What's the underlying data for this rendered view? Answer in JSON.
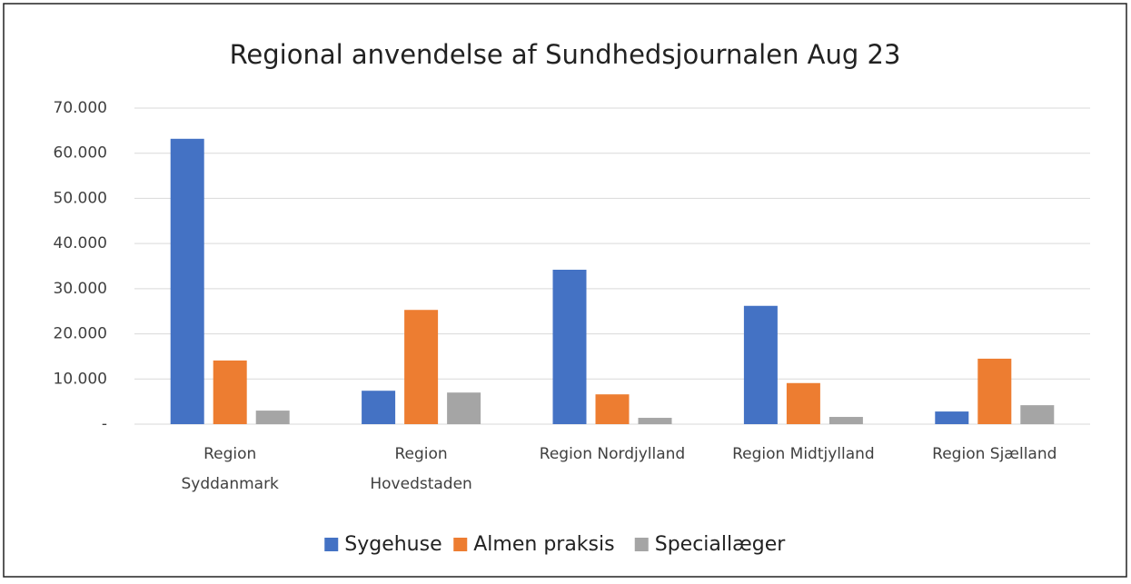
{
  "chart_data": {
    "type": "bar",
    "title": "Regional anvendelse af Sundhedsjournalen  Aug 23",
    "categories": [
      "Region\nSyddanmark",
      "Region\nHovedstaden",
      "Region Nordjylland",
      "Region Midtjylland",
      "Region Sjælland"
    ],
    "series": [
      {
        "name": "Sygehuse",
        "color": "#4472c4",
        "values": [
          63200,
          7400,
          34200,
          26200,
          2800
        ]
      },
      {
        "name": "Almen praksis",
        "color": "#ed7d31",
        "values": [
          14100,
          25300,
          6600,
          9100,
          14500
        ]
      },
      {
        "name": "Speciallæger",
        "color": "#a5a5a5",
        "values": [
          3000,
          7000,
          1400,
          1600,
          4200
        ]
      }
    ],
    "ylim": [
      0,
      70000
    ],
    "yticks": [
      {
        "value": 0,
        "label": "-"
      },
      {
        "value": 10000,
        "label": "10.000"
      },
      {
        "value": 20000,
        "label": "20.000"
      },
      {
        "value": 30000,
        "label": "30.000"
      },
      {
        "value": 40000,
        "label": "40.000"
      },
      {
        "value": 50000,
        "label": "50.000"
      },
      {
        "value": 60000,
        "label": "60.000"
      },
      {
        "value": 70000,
        "label": "70.000"
      }
    ],
    "grid": true,
    "legend": "bottom"
  }
}
